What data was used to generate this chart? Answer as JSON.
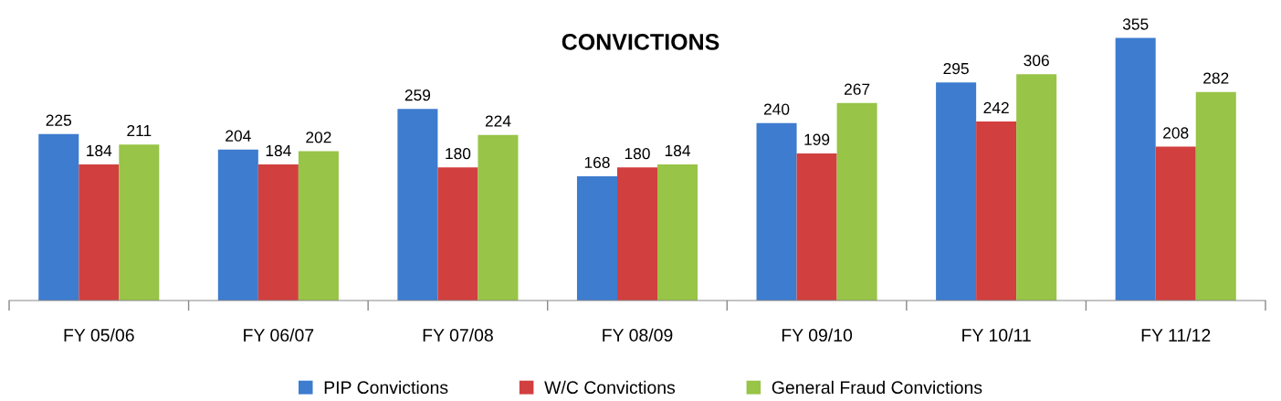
{
  "chart_data": {
    "type": "bar",
    "title": "CONVICTIONS",
    "categories": [
      "FY 05/06",
      "FY 06/07",
      "FY 07/08",
      "FY 08/09",
      "FY 09/10",
      "FY 10/11",
      "FY 11/12"
    ],
    "series": [
      {
        "name": "PIP Convictions",
        "color": "#3d7ccf",
        "values": [
          225,
          204,
          259,
          168,
          240,
          295,
          355
        ]
      },
      {
        "name": "W/C Convictions",
        "color": "#d23f3f",
        "values": [
          184,
          184,
          180,
          180,
          199,
          242,
          208
        ]
      },
      {
        "name": "General Fraud Convictions",
        "color": "#98c447",
        "values": [
          211,
          202,
          224,
          184,
          267,
          306,
          282
        ]
      }
    ],
    "data_labels": true,
    "legend": "bottom",
    "tick_labels": "x"
  }
}
